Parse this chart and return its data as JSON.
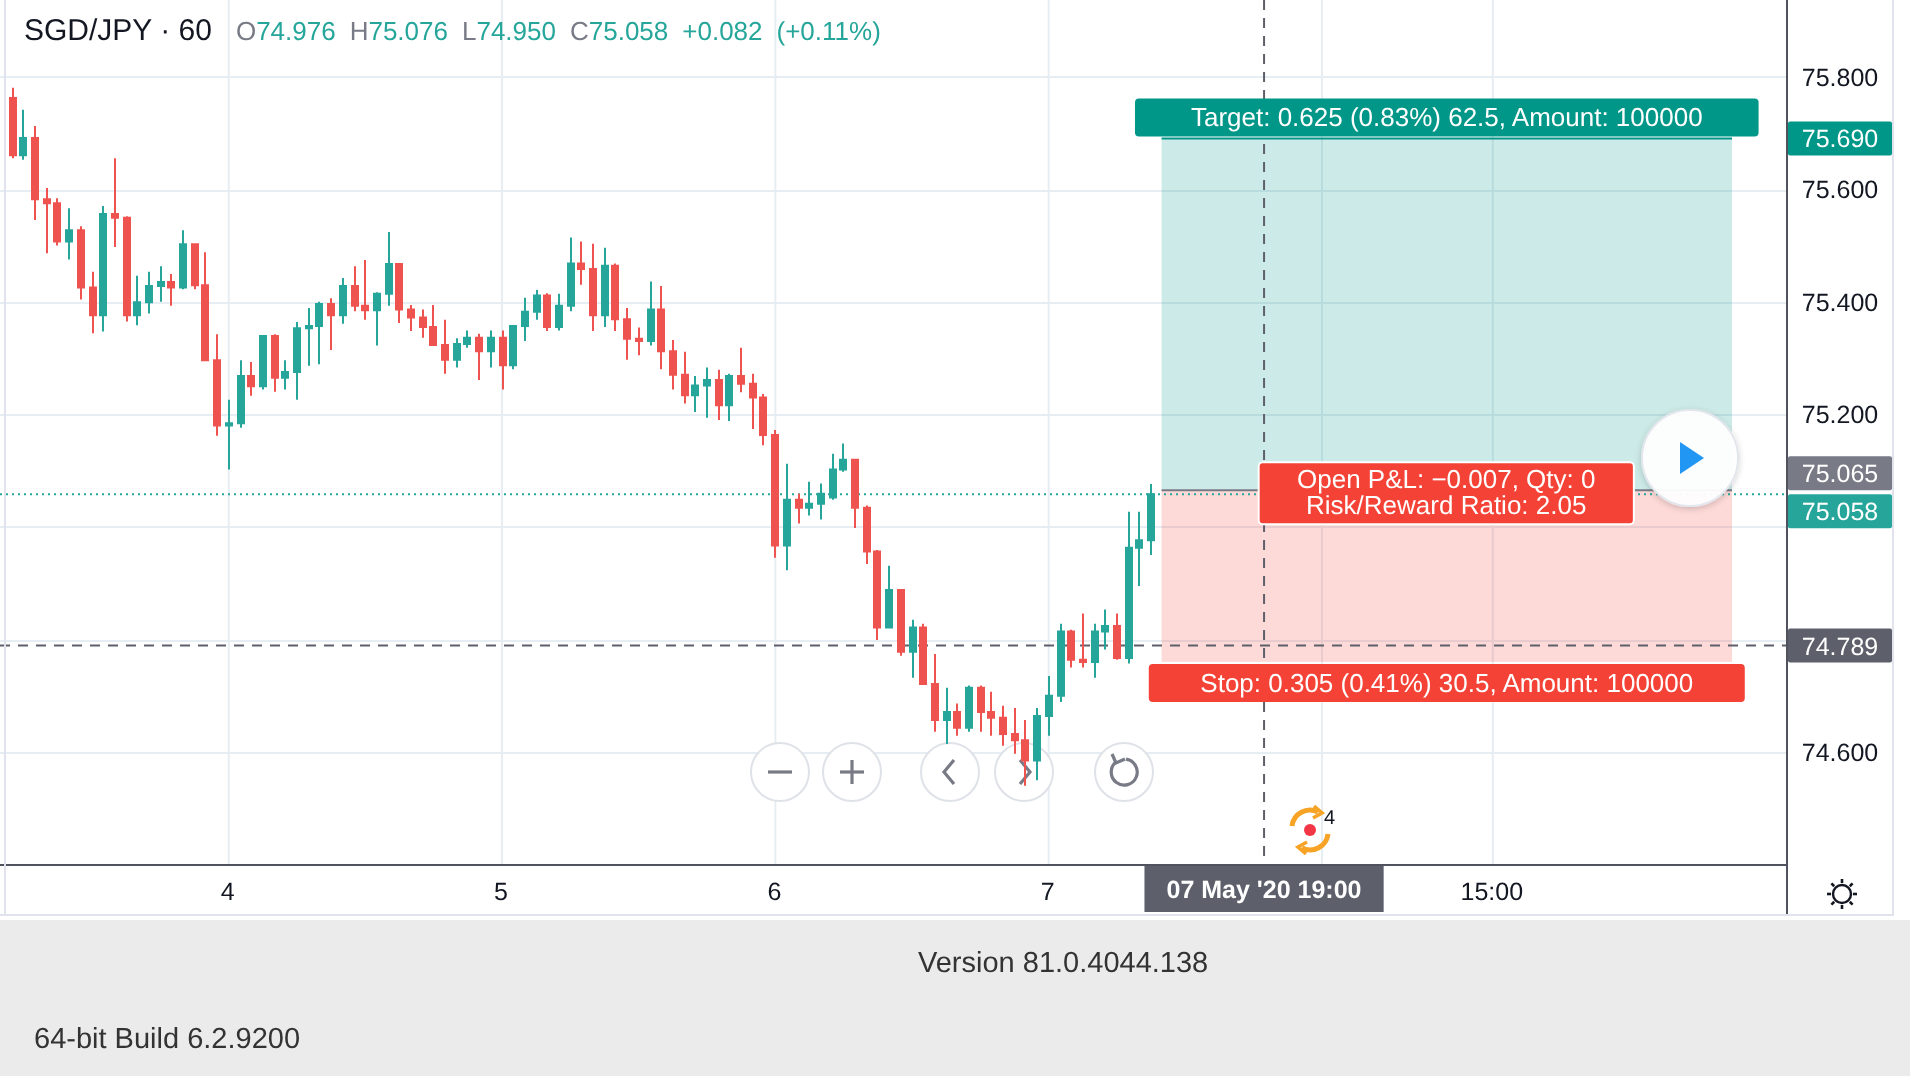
{
  "chart_data": {
    "type": "candlestick",
    "title": "SGD/JPY · 60",
    "subtitle": "O74.976 H75.076 L74.950 C75.058 +0.082 (+0.11%)",
    "x": [
      "2020-05-03T05:00",
      "2020-05-03T06:00",
      "2020-05-03T07:00",
      "2020-05-03T08:00",
      "2020-05-03T09:00",
      "2020-05-03T10:00",
      "2020-05-03T11:00",
      "2020-05-03T12:00",
      "2020-05-03T13:00",
      "2020-05-03T14:00",
      "2020-05-03T15:00",
      "2020-05-03T16:00",
      "2020-05-03T17:00",
      "2020-05-03T18:00",
      "2020-05-03T19:00",
      "2020-05-03T20:00",
      "2020-05-03T21:00",
      "2020-05-03T22:00",
      "2020-05-03T23:00",
      "2020-05-04T00:00",
      "2020-05-04T01:00",
      "2020-05-04T02:00",
      "2020-05-04T03:00",
      "2020-05-04T04:00",
      "2020-05-04T05:00",
      "2020-05-04T06:00",
      "2020-05-04T07:00",
      "2020-05-04T08:00",
      "2020-05-04T09:00",
      "2020-05-04T10:00",
      "2020-05-04T11:00",
      "2020-05-04T12:00",
      "2020-05-04T13:00",
      "2020-05-04T14:00",
      "2020-05-04T15:00",
      "2020-05-04T16:00",
      "2020-05-04T17:00",
      "2020-05-04T18:00",
      "2020-05-04T19:00",
      "2020-05-04T20:00",
      "2020-05-04T21:00",
      "2020-05-04T22:00",
      "2020-05-04T23:00",
      "2020-05-05T00:00",
      "2020-05-05T01:00",
      "2020-05-05T02:00",
      "2020-05-05T03:00",
      "2020-05-05T04:00",
      "2020-05-05T05:00",
      "2020-05-05T06:00",
      "2020-05-05T07:00",
      "2020-05-05T08:00",
      "2020-05-05T09:00",
      "2020-05-05T10:00",
      "2020-05-05T11:00",
      "2020-05-05T12:00",
      "2020-05-05T13:00",
      "2020-05-05T14:00",
      "2020-05-05T15:00",
      "2020-05-05T16:00",
      "2020-05-05T17:00",
      "2020-05-05T18:00",
      "2020-05-05T19:00",
      "2020-05-05T20:00",
      "2020-05-05T21:00",
      "2020-05-05T22:00",
      "2020-05-05T23:00",
      "2020-05-06T00:00",
      "2020-05-06T01:00",
      "2020-05-06T02:00",
      "2020-05-06T03:00",
      "2020-05-06T04:00",
      "2020-05-06T05:00",
      "2020-05-06T06:00",
      "2020-05-06T07:00",
      "2020-05-06T08:00",
      "2020-05-06T09:00",
      "2020-05-06T10:00",
      "2020-05-06T11:00",
      "2020-05-06T12:00",
      "2020-05-06T13:00",
      "2020-05-06T14:00",
      "2020-05-06T15:00",
      "2020-05-06T16:00",
      "2020-05-06T17:00",
      "2020-05-06T18:00",
      "2020-05-06T19:00",
      "2020-05-06T20:00",
      "2020-05-06T21:00",
      "2020-05-06T22:00",
      "2020-05-06T23:00",
      "2020-05-07T00:00",
      "2020-05-07T01:00",
      "2020-05-07T02:00",
      "2020-05-07T03:00",
      "2020-05-07T04:00",
      "2020-05-07T05:00",
      "2020-05-07T06:00",
      "2020-05-07T07:00",
      "2020-05-07T08:00",
      "2020-05-07T09:00"
    ],
    "ohlc": [
      [
        75.762,
        75.78,
        75.655,
        75.66
      ],
      [
        75.66,
        75.741,
        75.652,
        75.691
      ],
      [
        75.691,
        75.712,
        75.545,
        75.582
      ],
      [
        75.582,
        75.602,
        75.486,
        75.575
      ],
      [
        75.575,
        75.584,
        75.5,
        75.507
      ],
      [
        75.507,
        75.566,
        75.475,
        75.527
      ],
      [
        75.527,
        75.534,
        75.404,
        75.425
      ],
      [
        75.425,
        75.453,
        75.344,
        75.376
      ],
      [
        75.376,
        75.57,
        75.347,
        75.556
      ],
      [
        75.556,
        75.655,
        75.497,
        75.549
      ],
      [
        75.549,
        75.552,
        75.365,
        75.376
      ],
      [
        75.376,
        75.446,
        75.358,
        75.399
      ],
      [
        75.399,
        75.453,
        75.379,
        75.428
      ],
      [
        75.428,
        75.463,
        75.4,
        75.435
      ],
      [
        75.435,
        75.449,
        75.393,
        75.425
      ],
      [
        75.425,
        75.527,
        75.422,
        75.502
      ],
      [
        75.502,
        75.502,
        75.422,
        75.429
      ],
      [
        75.429,
        75.488,
        75.296,
        75.296
      ],
      [
        75.296,
        75.342,
        75.162,
        75.18
      ],
      [
        75.18,
        75.226,
        75.102,
        75.184
      ],
      [
        75.184,
        75.296,
        75.176,
        75.268
      ],
      [
        75.268,
        75.293,
        75.233,
        75.25
      ],
      [
        75.25,
        75.339,
        75.244,
        75.339
      ],
      [
        75.339,
        75.342,
        75.24,
        75.265
      ],
      [
        75.265,
        75.296,
        75.244,
        75.275
      ],
      [
        75.275,
        75.364,
        75.226,
        75.353
      ],
      [
        75.353,
        75.389,
        75.286,
        75.357
      ],
      [
        75.357,
        75.4,
        75.289,
        75.396
      ],
      [
        75.396,
        75.406,
        75.314,
        75.376
      ],
      [
        75.376,
        75.442,
        75.361,
        75.428
      ],
      [
        75.428,
        75.463,
        75.383,
        75.393
      ],
      [
        75.393,
        75.474,
        75.368,
        75.385
      ],
      [
        75.385,
        75.417,
        75.322,
        75.414
      ],
      [
        75.414,
        75.524,
        75.393,
        75.467
      ],
      [
        75.467,
        75.468,
        75.362,
        75.386
      ],
      [
        75.386,
        75.394,
        75.348,
        75.372
      ],
      [
        75.372,
        75.386,
        75.336,
        75.355
      ],
      [
        75.355,
        75.394,
        75.323,
        75.323
      ],
      [
        75.323,
        75.368,
        75.272,
        75.297
      ],
      [
        75.297,
        75.335,
        75.283,
        75.325
      ],
      [
        75.325,
        75.349,
        75.318,
        75.336
      ],
      [
        75.336,
        75.343,
        75.261,
        75.312
      ],
      [
        75.312,
        75.349,
        75.283,
        75.336
      ],
      [
        75.336,
        75.349,
        75.244,
        75.287
      ],
      [
        75.287,
        75.357,
        75.28,
        75.357
      ],
      [
        75.357,
        75.407,
        75.33,
        75.382
      ],
      [
        75.382,
        75.421,
        75.368,
        75.411
      ],
      [
        75.411,
        75.415,
        75.348,
        75.355
      ],
      [
        75.355,
        75.414,
        75.349,
        75.393
      ],
      [
        75.393,
        75.514,
        75.383,
        75.468
      ],
      [
        75.468,
        75.507,
        75.43,
        75.458
      ],
      [
        75.458,
        75.503,
        75.348,
        75.376
      ],
      [
        75.376,
        75.496,
        75.355,
        75.464
      ],
      [
        75.464,
        75.468,
        75.348,
        75.369
      ],
      [
        75.369,
        75.389,
        75.297,
        75.334
      ],
      [
        75.334,
        75.354,
        75.305,
        75.33
      ],
      [
        75.33,
        75.436,
        75.322,
        75.386
      ],
      [
        75.386,
        75.428,
        75.28,
        75.312
      ],
      [
        75.312,
        75.332,
        75.244,
        75.27
      ],
      [
        75.27,
        75.311,
        75.219,
        75.234
      ],
      [
        75.234,
        75.268,
        75.204,
        75.251
      ],
      [
        75.251,
        75.283,
        75.194,
        75.261
      ],
      [
        75.261,
        75.279,
        75.19,
        75.216
      ],
      [
        75.216,
        75.272,
        75.188,
        75.268
      ],
      [
        75.268,
        75.318,
        75.239,
        75.254
      ],
      [
        75.254,
        75.272,
        75.174,
        75.23
      ],
      [
        75.23,
        75.236,
        75.145,
        75.163
      ],
      [
        75.163,
        75.172,
        74.945,
        74.967
      ],
      [
        74.967,
        75.112,
        74.923,
        75.048
      ],
      [
        75.048,
        75.059,
        75.006,
        75.034
      ],
      [
        75.034,
        75.08,
        75.02,
        75.041
      ],
      [
        75.041,
        75.077,
        75.013,
        75.059
      ],
      [
        75.052,
        75.13,
        75.048,
        75.102
      ],
      [
        75.102,
        75.148,
        75.098,
        75.119
      ],
      [
        75.119,
        75.119,
        74.998,
        75.034
      ],
      [
        75.034,
        75.038,
        74.934,
        74.956
      ],
      [
        74.956,
        74.959,
        74.799,
        74.821
      ],
      [
        74.821,
        74.931,
        74.821,
        74.888
      ],
      [
        74.888,
        74.888,
        74.771,
        74.778
      ],
      [
        74.778,
        74.835,
        74.732,
        74.821
      ],
      [
        74.821,
        74.828,
        74.721,
        74.721
      ],
      [
        74.721,
        74.774,
        74.636,
        74.657
      ],
      [
        74.657,
        74.714,
        74.614,
        74.671
      ],
      [
        74.671,
        74.686,
        74.629,
        74.643
      ],
      [
        74.643,
        74.718,
        74.636,
        74.714
      ],
      [
        74.714,
        74.718,
        74.636,
        74.671
      ],
      [
        74.671,
        74.707,
        74.629,
        74.661
      ],
      [
        74.661,
        74.682,
        74.611,
        74.632
      ],
      [
        74.632,
        74.678,
        74.597,
        74.621
      ],
      [
        74.621,
        74.657,
        74.54,
        74.585
      ],
      [
        74.585,
        74.678,
        74.55,
        74.664
      ],
      [
        74.664,
        74.735,
        74.629,
        74.7
      ],
      [
        74.7,
        74.828,
        74.689,
        74.814
      ],
      [
        74.814,
        74.817,
        74.75,
        74.764
      ],
      [
        74.764,
        74.846,
        74.75,
        74.76
      ],
      [
        74.76,
        74.828,
        74.732,
        74.814
      ],
      [
        74.814,
        74.853,
        74.782,
        74.824
      ],
      [
        74.824,
        74.846,
        74.764,
        74.767
      ],
      [
        74.767,
        75.027,
        74.757,
        74.963
      ],
      [
        74.963,
        75.027,
        74.895,
        74.976
      ],
      [
        74.976,
        75.076,
        74.95,
        75.058
      ]
    ],
    "colors": [
      "#ef5350",
      "#26a69a",
      "#ef5350",
      "#ef5350",
      "#ef5350",
      "#26a69a",
      "#ef5350",
      "#ef5350",
      "#26a69a",
      "#ef5350",
      "#ef5350",
      "#26a69a",
      "#26a69a",
      "#26a69a",
      "#ef5350",
      "#26a69a",
      "#ef5350",
      "#ef5350",
      "#ef5350",
      "#26a69a",
      "#26a69a",
      "#ef5350",
      "#26a69a",
      "#ef5350",
      "#26a69a",
      "#26a69a",
      "#26a69a",
      "#26a69a",
      "#ef5350",
      "#26a69a",
      "#ef5350",
      "#ef5350",
      "#26a69a",
      "#26a69a",
      "#ef5350",
      "#ef5350",
      "#ef5350",
      "#ef5350",
      "#ef5350",
      "#26a69a",
      "#26a69a",
      "#ef5350",
      "#26a69a",
      "#ef5350",
      "#26a69a",
      "#26a69a",
      "#26a69a",
      "#ef5350",
      "#26a69a",
      "#26a69a",
      "#ef5350",
      "#ef5350",
      "#26a69a",
      "#ef5350",
      "#ef5350",
      "#ef5350",
      "#26a69a",
      "#ef5350",
      "#ef5350",
      "#ef5350",
      "#26a69a",
      "#26a69a",
      "#ef5350",
      "#26a69a",
      "#ef5350",
      "#ef5350",
      "#ef5350",
      "#ef5350",
      "#26a69a",
      "#ef5350",
      "#26a69a",
      "#26a69a",
      "#26a69a",
      "#26a69a",
      "#ef5350",
      "#ef5350",
      "#ef5350",
      "#26a69a",
      "#ef5350",
      "#26a69a",
      "#ef5350",
      "#ef5350",
      "#26a69a",
      "#ef5350",
      "#26a69a",
      "#ef5350",
      "#ef5350",
      "#ef5350",
      "#ef5350",
      "#ef5350",
      "#26a69a",
      "#26a69a",
      "#26a69a",
      "#ef5350",
      "#ef5350",
      "#26a69a",
      "#26a69a",
      "#ef5350",
      "#26a69a",
      "#26a69a",
      "#26a69a"
    ],
    "xlim": [
      "2020-05-03T04:00",
      "2020-05-09T16:50"
    ],
    "xticks": [
      {
        "value": "2020-05-04",
        "label": "4"
      },
      {
        "value": "2020-05-05",
        "label": "5"
      },
      {
        "value": "2020-05-06",
        "label": "6"
      },
      {
        "value": "2020-05-07",
        "label": "7"
      },
      {
        "value": "2020-05-08",
        "label": null
      },
      {
        "value": "2020-05-08T15:00",
        "label": "15:00"
      }
    ],
    "ylim": [
      74.401,
      75.936
    ],
    "yticks": [
      {
        "value": 74.6,
        "label": "74.600"
      },
      {
        "value": 74.8,
        "label": null
      },
      {
        "value": 75.0,
        "label": null
      },
      {
        "value": 75.2,
        "label": "75.200"
      },
      {
        "value": 75.4,
        "label": "75.400"
      },
      {
        "value": 75.6,
        "label": "75.600"
      },
      {
        "value": 75.8,
        "label": "75.800"
      }
    ],
    "grid": true,
    "ref_lines": [
      {
        "axis": "y",
        "value": 75.69,
        "label": "75.690",
        "color": "#009688"
      },
      {
        "axis": "y",
        "value": 75.065,
        "label": "75.065",
        "color": "#787b86"
      },
      {
        "axis": "y",
        "value": 75.058,
        "label": "75.058",
        "color": "#26a69a",
        "line_style": "dotted"
      },
      {
        "axis": "y",
        "value": 74.789,
        "label": "74.789",
        "color": "#5d606b",
        "line_style": "dashed"
      },
      {
        "axis": "x",
        "value": "2020-05-07T19:00",
        "label": "07 May '20 19:00",
        "color": "#5d606b",
        "line_style": "dashed"
      }
    ],
    "bands": [
      {
        "axis": "y",
        "from": 75.065,
        "to": 75.69,
        "label": "Target: 0.625 (0.83%) 62.5, Amount: 100000",
        "color": "#009688"
      },
      {
        "axis": "y",
        "from": 74.76,
        "to": 75.065,
        "label": "Stop: 0.305 (0.41%) 30.5, Amount: 100000",
        "color": "#f44336"
      }
    ],
    "annotations": [
      {
        "text": "Open P&L: −0.007, Qty: 0",
        "x": "2020-05-08T11:00",
        "y": 75.065
      },
      {
        "text": "Risk/Reward Ratio: 2.05",
        "x": "2020-05-08T11:00",
        "y": 75.065
      },
      "4",
      "Version 81.0.4044.138",
      "64-bit Build 6.2.9200"
    ]
  }
}
